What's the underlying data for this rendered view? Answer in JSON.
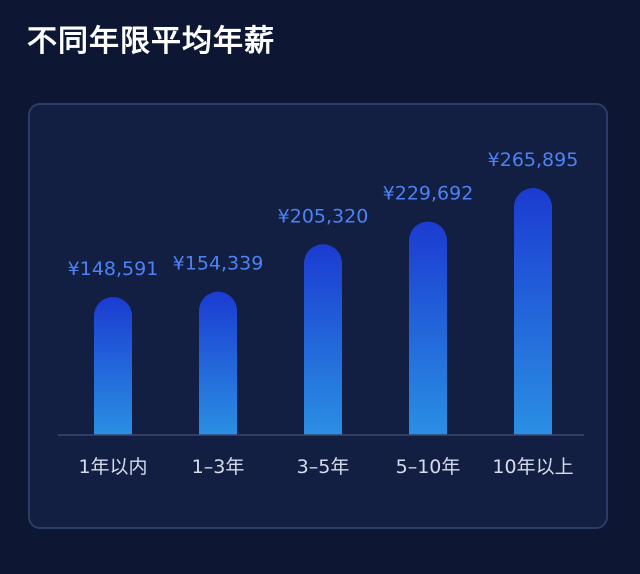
{
  "title": "不同年限平均年薪",
  "chart_data": {
    "type": "bar",
    "categories": [
      "1年以内",
      "1–3年",
      "3–5年",
      "5–10年",
      "10年以上"
    ],
    "values": [
      148591,
      154339,
      205320,
      229692,
      265895
    ],
    "value_labels": [
      "¥148,591",
      "¥154,339",
      "¥205,320",
      "¥229,692",
      "¥265,895"
    ],
    "title": "不同年限平均年薪",
    "xlabel": "",
    "ylabel": "",
    "grid": false,
    "colors": {
      "bar_top": "#1b3bd1",
      "bar_bottom": "#2a8fe3",
      "value_label": "#4d82f5",
      "category_label": "#d6dcec",
      "baseline": "#3a4870"
    }
  }
}
